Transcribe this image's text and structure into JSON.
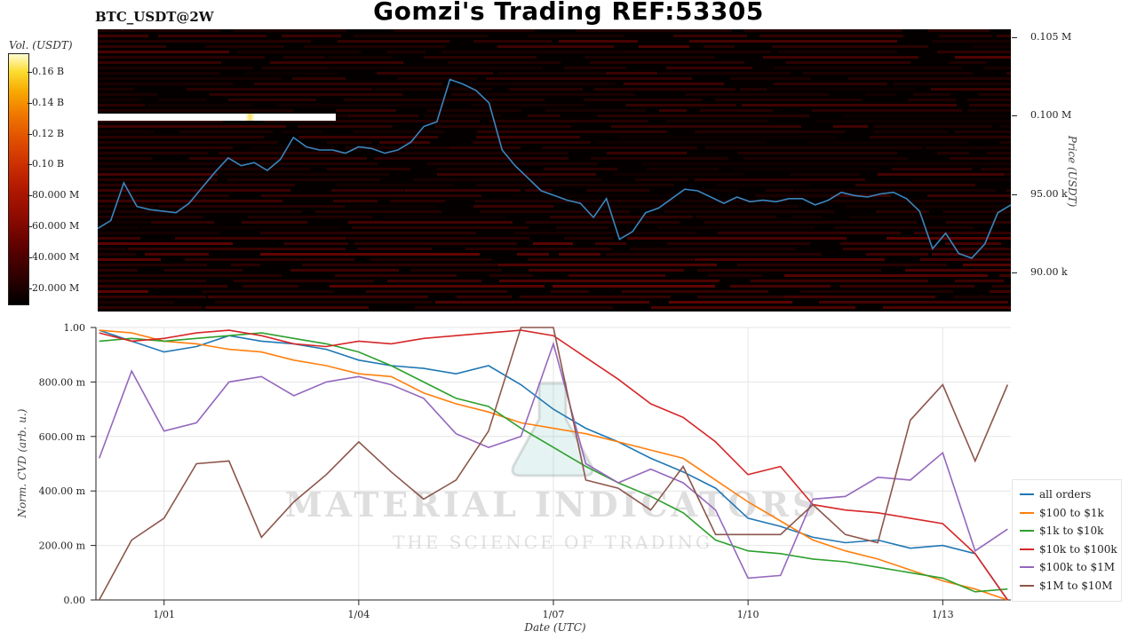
{
  "header": {
    "title": "Gomzi's Trading REF:53305",
    "pair": "BTC_USDT@2W"
  },
  "colorbar": {
    "title": "Vol. (USDT)",
    "ticks": [
      "0.16 B",
      "0.14 B",
      "0.12 B",
      "0.10 B",
      "80.000 M",
      "60.000 M",
      "40.000 M",
      "20.000 M"
    ]
  },
  "watermark": {
    "line1": "MATERIAL INDICATORS",
    "line2": "THE SCIENCE OF TRADING"
  },
  "chart_data": [
    {
      "type": "heatmap",
      "title": "",
      "ylabel": "Price (USDT)",
      "ytick_labels": [
        "0.105 M",
        "0.100 M",
        "95.00 k",
        "90.00 k"
      ],
      "y_ticks": [
        105000,
        100000,
        95000,
        90000
      ],
      "ylim": [
        87500,
        105500
      ],
      "colorbar_label": "Vol. (USDT)",
      "colorbar_ticks": [
        "0.16 B",
        "0.14 B",
        "0.12 B",
        "0.10 B",
        "80.000 M",
        "60.000 M",
        "40.000 M",
        "20.000 M"
      ],
      "series": [
        {
          "name": "Price",
          "color": "#3a86c0",
          "x": [
            0.0,
            0.2,
            0.4,
            0.6,
            0.8,
            1.0,
            1.2,
            1.4,
            1.6,
            1.8,
            2.0,
            2.2,
            2.4,
            2.6,
            2.8,
            3.0,
            3.2,
            3.4,
            3.6,
            3.8,
            4.0,
            4.2,
            4.4,
            4.6,
            4.8,
            5.0,
            5.2,
            5.4,
            5.6,
            5.8,
            6.0,
            6.2,
            6.4,
            6.6,
            6.8,
            7.0,
            7.2,
            7.4,
            7.6,
            7.8,
            8.0,
            8.2,
            8.4,
            8.6,
            8.8,
            9.0,
            9.2,
            9.4,
            9.6,
            9.8,
            10.0,
            10.2,
            10.4,
            10.6,
            10.8,
            11.0,
            11.2,
            11.4,
            11.6,
            11.8,
            12.0,
            12.2,
            12.4,
            12.6,
            12.8,
            13.0,
            13.2,
            13.4,
            13.6,
            13.8,
            14.0
          ],
          "y": [
            92800,
            93300,
            95700,
            94200,
            94000,
            93900,
            93800,
            94400,
            95400,
            96400,
            97300,
            96800,
            97000,
            96500,
            97200,
            98600,
            98000,
            97800,
            97800,
            97600,
            98000,
            97900,
            97600,
            97800,
            98300,
            99300,
            99600,
            102300,
            102000,
            101600,
            100800,
            97800,
            96800,
            96000,
            95200,
            94900,
            94600,
            94400,
            93500,
            94700,
            92100,
            92600,
            93800,
            94100,
            94700,
            95300,
            95200,
            94800,
            94400,
            94800,
            94500,
            94600,
            94500,
            94700,
            94700,
            94300,
            94600,
            95100,
            94900,
            94800,
            95000,
            95100,
            94700,
            93900,
            91500,
            92500,
            91200,
            90900,
            91800,
            93800,
            94300
          ]
        }
      ]
    },
    {
      "type": "line",
      "title": "",
      "xlabel": "Date (UTC)",
      "ylabel": "Norm. CVD (arb. u.)",
      "categories": [
        "1/01",
        "1/04",
        "1/07",
        "1/10",
        "1/13"
      ],
      "x_ticks": [
        1,
        4,
        7,
        10,
        13
      ],
      "ytick_labels": [
        "0.00",
        "200.00 m",
        "400.00 m",
        "600.00 m",
        "800.00 m",
        "1.00"
      ],
      "y_ticks": [
        0,
        0.2,
        0.4,
        0.6,
        0.8,
        1.0
      ],
      "xlim": [
        -0.05,
        14.05
      ],
      "ylim": [
        0,
        1.0
      ],
      "grid": true,
      "legend": "bottom-right",
      "x": [
        0.0,
        0.5,
        1.0,
        1.5,
        2.0,
        2.5,
        3.0,
        3.5,
        4.0,
        4.5,
        5.0,
        5.5,
        6.0,
        6.5,
        7.0,
        7.5,
        8.0,
        8.5,
        9.0,
        9.5,
        10.0,
        10.5,
        11.0,
        11.5,
        12.0,
        12.5,
        13.0,
        13.5,
        14.0
      ],
      "series": [
        {
          "name": "all orders",
          "color": "#1f77b4",
          "values": [
            0.99,
            0.95,
            0.91,
            0.93,
            0.97,
            0.95,
            0.94,
            0.92,
            0.88,
            0.86,
            0.85,
            0.83,
            0.86,
            0.79,
            0.7,
            0.63,
            0.58,
            0.52,
            0.47,
            0.41,
            0.3,
            0.27,
            0.23,
            0.21,
            0.22,
            0.19,
            0.2,
            0.17,
            0.0
          ]
        },
        {
          "name": "$100 to $1k",
          "color": "#ff7f0e",
          "values": [
            0.99,
            0.98,
            0.95,
            0.94,
            0.92,
            0.91,
            0.88,
            0.86,
            0.83,
            0.82,
            0.76,
            0.72,
            0.69,
            0.65,
            0.63,
            0.61,
            0.58,
            0.55,
            0.52,
            0.44,
            0.36,
            0.29,
            0.22,
            0.18,
            0.15,
            0.11,
            0.07,
            0.04,
            0.0
          ]
        },
        {
          "name": "$1k to $10k",
          "color": "#2ca02c",
          "values": [
            0.95,
            0.96,
            0.95,
            0.96,
            0.97,
            0.98,
            0.96,
            0.94,
            0.91,
            0.86,
            0.8,
            0.74,
            0.71,
            0.63,
            0.56,
            0.49,
            0.43,
            0.38,
            0.32,
            0.22,
            0.18,
            0.17,
            0.15,
            0.14,
            0.12,
            0.1,
            0.08,
            0.03,
            0.04
          ]
        },
        {
          "name": "$10k to $100k",
          "color": "#d62728",
          "values": [
            0.98,
            0.95,
            0.96,
            0.98,
            0.99,
            0.97,
            0.94,
            0.93,
            0.95,
            0.94,
            0.96,
            0.97,
            0.98,
            0.99,
            0.97,
            0.89,
            0.81,
            0.72,
            0.67,
            0.58,
            0.46,
            0.49,
            0.35,
            0.33,
            0.32,
            0.3,
            0.28,
            0.17,
            0.0
          ]
        },
        {
          "name": "$100k to $1M",
          "color": "#9467bd",
          "values": [
            0.52,
            0.84,
            0.62,
            0.65,
            0.8,
            0.82,
            0.75,
            0.8,
            0.82,
            0.79,
            0.74,
            0.61,
            0.56,
            0.6,
            0.94,
            0.5,
            0.43,
            0.48,
            0.43,
            0.33,
            0.08,
            0.09,
            0.37,
            0.38,
            0.45,
            0.44,
            0.54,
            0.18,
            0.26
          ]
        },
        {
          "name": "$1M to $10M",
          "color": "#8c564b",
          "values": [
            0.0,
            0.22,
            0.3,
            0.5,
            0.51,
            0.23,
            0.36,
            0.46,
            0.58,
            0.47,
            0.37,
            0.44,
            0.62,
            1.0,
            1.0,
            0.44,
            0.41,
            0.33,
            0.49,
            0.24,
            0.24,
            0.24,
            0.35,
            0.24,
            0.21,
            0.66,
            0.79,
            0.51,
            0.79
          ]
        }
      ]
    }
  ]
}
